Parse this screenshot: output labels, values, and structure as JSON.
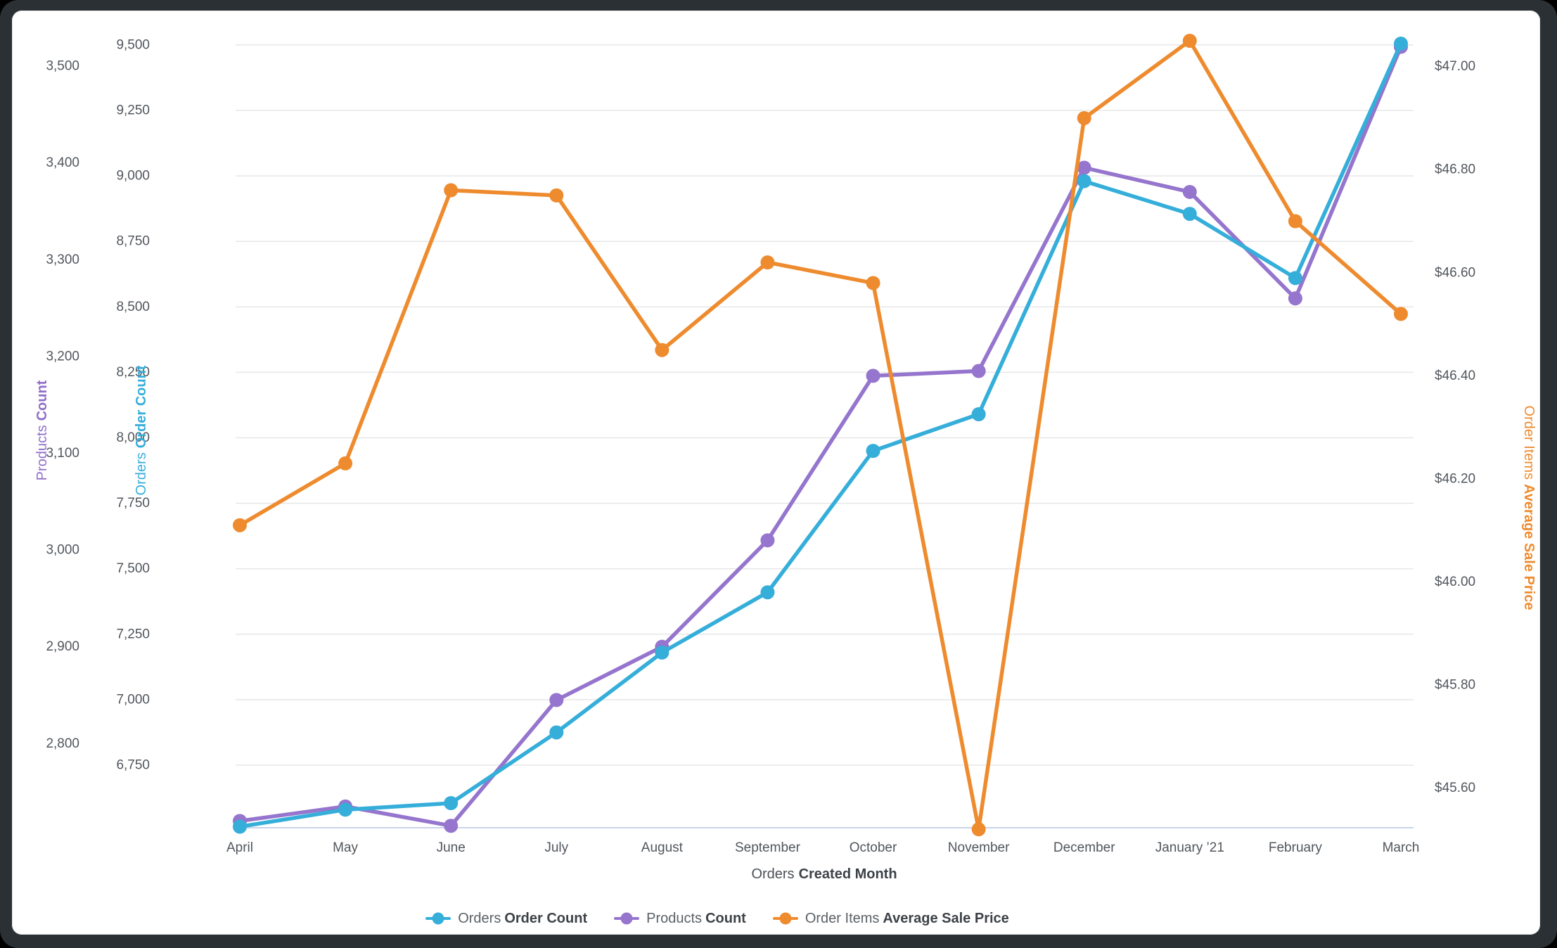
{
  "chart_data": {
    "type": "line",
    "x_axis": {
      "title_regular": "Orders",
      "title_bold": "Created Month",
      "categories": [
        "April",
        "May",
        "June",
        "July",
        "August",
        "September",
        "October",
        "November",
        "December",
        "January ’21",
        "February",
        "March"
      ]
    },
    "axes": {
      "products": {
        "title_regular": "Products",
        "title_bold": "Count",
        "color": "#8F6EC9",
        "range": [
          2713,
          3556
        ],
        "ticks": [
          {
            "value": 3500,
            "label": "3,500"
          },
          {
            "value": 3400,
            "label": "3,400"
          },
          {
            "value": 3300,
            "label": "3,300"
          },
          {
            "value": 3200,
            "label": "3,200"
          },
          {
            "value": 3100,
            "label": "3,100"
          },
          {
            "value": 3000,
            "label": "3,000"
          },
          {
            "value": 2900,
            "label": "2,900"
          },
          {
            "value": 2800,
            "label": "2,800"
          }
        ]
      },
      "orders": {
        "title_regular": "Orders",
        "title_bold": "Order Count",
        "color": "#35AEDA",
        "range": [
          6511,
          9626
        ],
        "ticks": [
          {
            "value": 9500,
            "label": "9,500"
          },
          {
            "value": 9250,
            "label": "9,250"
          },
          {
            "value": 9000,
            "label": "9,000"
          },
          {
            "value": 8750,
            "label": "8,750"
          },
          {
            "value": 8500,
            "label": "8,500"
          },
          {
            "value": 8250,
            "label": "8,250"
          },
          {
            "value": 8000,
            "label": "8,000"
          },
          {
            "value": 7750,
            "label": "7,750"
          },
          {
            "value": 7500,
            "label": "7,500"
          },
          {
            "value": 7250,
            "label": "7,250"
          },
          {
            "value": 7000,
            "label": "7,000"
          },
          {
            "value": 6750,
            "label": "6,750"
          }
        ]
      },
      "price": {
        "title_regular": "Order Items",
        "title_bold": "Average Sale Price",
        "color": "#EE8B2E",
        "range": [
          45.523,
          47.106
        ],
        "ticks": [
          {
            "value": 47.0,
            "label": "$47.00"
          },
          {
            "value": 46.8,
            "label": "$46.80"
          },
          {
            "value": 46.6,
            "label": "$46.60"
          },
          {
            "value": 46.4,
            "label": "$46.40"
          },
          {
            "value": 46.2,
            "label": "$46.20"
          },
          {
            "value": 46.0,
            "label": "$46.00"
          },
          {
            "value": 45.8,
            "label": "$45.80"
          },
          {
            "value": 45.6,
            "label": "$45.60"
          }
        ]
      }
    },
    "series": [
      {
        "id": "orders",
        "legend_regular": "Orders",
        "legend_bold": "Order Count",
        "color": "#35AEDA",
        "axis": "orders",
        "values": [
          6515,
          6580,
          6605,
          6875,
          7180,
          7410,
          7950,
          8090,
          8980,
          8855,
          8610,
          9505
        ]
      },
      {
        "id": "products",
        "legend_regular": "Products",
        "legend_bold": "Count",
        "color": "#9575CD",
        "axis": "products",
        "values": [
          2720,
          2735,
          2715,
          2845,
          2900,
          3010,
          3180,
          3185,
          3395,
          3370,
          3260,
          3520
        ]
      },
      {
        "id": "price",
        "legend_regular": "Order Items",
        "legend_bold": "Average Sale Price",
        "color": "#EE8B2E",
        "axis": "price",
        "values": [
          46.11,
          46.23,
          46.76,
          46.75,
          46.45,
          46.62,
          46.58,
          45.52,
          46.9,
          47.05,
          46.7,
          46.52
        ]
      }
    ],
    "legend_order": [
      "orders",
      "products",
      "price"
    ],
    "draw_order": [
      "products",
      "orders",
      "price"
    ],
    "grid": {
      "line_color": "#E7E7E7",
      "baseline_color": "#CBD4EA"
    },
    "legend_position": "bottom-center"
  }
}
